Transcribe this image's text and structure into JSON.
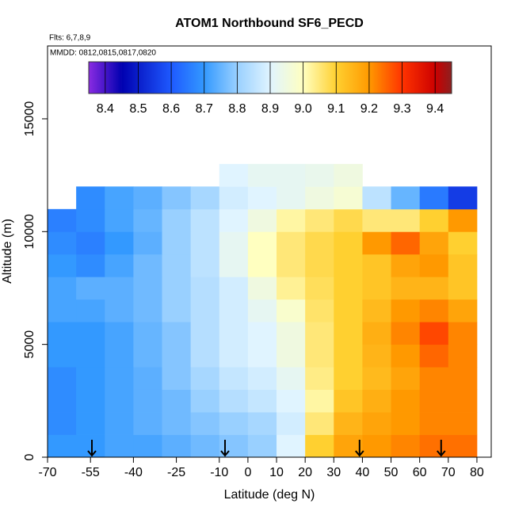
{
  "chart_data": {
    "type": "heatmap",
    "title": "ATOM1 Northbound SF6_PECD",
    "subtitle": "Flts: 6,7,8,9",
    "annotation": "MMDD: 0812,0815,0817,0820",
    "xlabel": "Latitude (deg N)",
    "ylabel": "Altitude (m)",
    "xlim": [
      -70,
      85
    ],
    "ylim": [
      0,
      18230
    ],
    "xticks": [
      -70,
      -55,
      -40,
      -25,
      -10,
      0,
      10,
      20,
      30,
      40,
      50,
      60,
      70,
      80
    ],
    "yticks": [
      0,
      5000,
      10000,
      15000
    ],
    "x_edges": [
      -70,
      -60,
      -50,
      -40,
      -30,
      -20,
      -10,
      0,
      10,
      20,
      30,
      40,
      50,
      60,
      70,
      80
    ],
    "y_edges": [
      0,
      1000,
      2000,
      3000,
      4000,
      5000,
      6000,
      7000,
      8000,
      9000,
      10000,
      11000,
      12000,
      13000
    ],
    "z": [
      [
        8.7,
        8.7,
        8.72,
        8.72,
        8.74,
        8.76,
        8.78,
        8.8,
        8.9,
        9.1,
        9.18,
        9.2,
        9.22,
        9.24,
        9.24
      ],
      [
        8.68,
        8.7,
        8.72,
        8.74,
        8.76,
        8.78,
        8.8,
        8.82,
        8.88,
        9.05,
        9.15,
        9.18,
        9.2,
        9.22,
        9.22
      ],
      [
        8.68,
        8.7,
        8.72,
        8.74,
        8.76,
        8.8,
        8.84,
        8.86,
        8.9,
        9.02,
        9.12,
        9.16,
        9.2,
        9.22,
        9.22
      ],
      [
        8.68,
        8.7,
        8.72,
        8.74,
        8.78,
        8.82,
        8.86,
        8.88,
        8.92,
        9.04,
        9.1,
        9.14,
        9.18,
        9.22,
        9.22
      ],
      [
        8.7,
        8.7,
        8.72,
        8.75,
        8.78,
        8.84,
        8.88,
        8.9,
        8.95,
        9.05,
        9.1,
        9.15,
        9.2,
        9.25,
        9.22
      ],
      [
        8.7,
        8.7,
        8.72,
        8.75,
        8.78,
        8.84,
        8.88,
        8.9,
        8.95,
        9.05,
        9.1,
        9.16,
        9.22,
        9.28,
        9.22
      ],
      [
        8.72,
        8.72,
        8.74,
        8.76,
        8.8,
        8.84,
        8.88,
        8.92,
        8.98,
        9.06,
        9.1,
        9.14,
        9.2,
        9.22,
        9.18
      ],
      [
        8.72,
        8.74,
        8.74,
        8.76,
        8.8,
        8.84,
        8.88,
        8.95,
        9.03,
        9.07,
        9.1,
        9.12,
        9.15,
        9.15,
        9.12
      ],
      [
        8.7,
        8.68,
        8.72,
        8.76,
        8.8,
        8.85,
        8.92,
        9.0,
        9.05,
        9.08,
        9.1,
        9.12,
        9.18,
        9.2,
        9.12
      ],
      [
        8.68,
        8.66,
        8.7,
        8.74,
        8.8,
        8.85,
        8.92,
        9.0,
        9.05,
        9.08,
        9.1,
        9.2,
        9.25,
        9.18,
        9.1
      ],
      [
        8.66,
        8.68,
        8.72,
        8.75,
        8.8,
        8.85,
        8.9,
        8.95,
        9.02,
        9.05,
        9.08,
        9.05,
        9.05,
        9.1,
        9.2
      ],
      [
        null,
        8.68,
        8.72,
        8.74,
        8.78,
        8.82,
        8.88,
        8.9,
        8.92,
        8.95,
        8.97,
        8.85,
        8.75,
        8.65,
        8.55
      ],
      [
        null,
        null,
        null,
        null,
        null,
        null,
        8.9,
        8.92,
        8.92,
        8.93,
        8.95,
        null,
        null,
        null,
        null
      ]
    ],
    "clim": [
      8.35,
      9.45
    ],
    "cticks": [
      8.4,
      8.5,
      8.6,
      8.7,
      8.8,
      8.9,
      {
        "value": 9,
        "label": "9.0"
      },
      9.1,
      9.2,
      9.3,
      9.4
    ],
    "colorscale": [
      {
        "value": 8.35,
        "color": "#8a2be2"
      },
      {
        "value": 8.45,
        "color": "#0000b0"
      },
      {
        "value": 8.6,
        "color": "#1e5aff"
      },
      {
        "value": 8.7,
        "color": "#3399ff"
      },
      {
        "value": 8.8,
        "color": "#99d0ff"
      },
      {
        "value": 8.9,
        "color": "#e0f4ff"
      },
      {
        "value": 9.0,
        "color": "#ffffc0"
      },
      {
        "value": 9.1,
        "color": "#ffd030"
      },
      {
        "value": 9.2,
        "color": "#ff9900"
      },
      {
        "value": 9.3,
        "color": "#ff3300"
      },
      {
        "value": 9.4,
        "color": "#cc0000"
      },
      {
        "value": 9.45,
        "color": "#8b2020"
      }
    ],
    "arrows": [
      -54.5,
      -8,
      39,
      67.5
    ]
  }
}
